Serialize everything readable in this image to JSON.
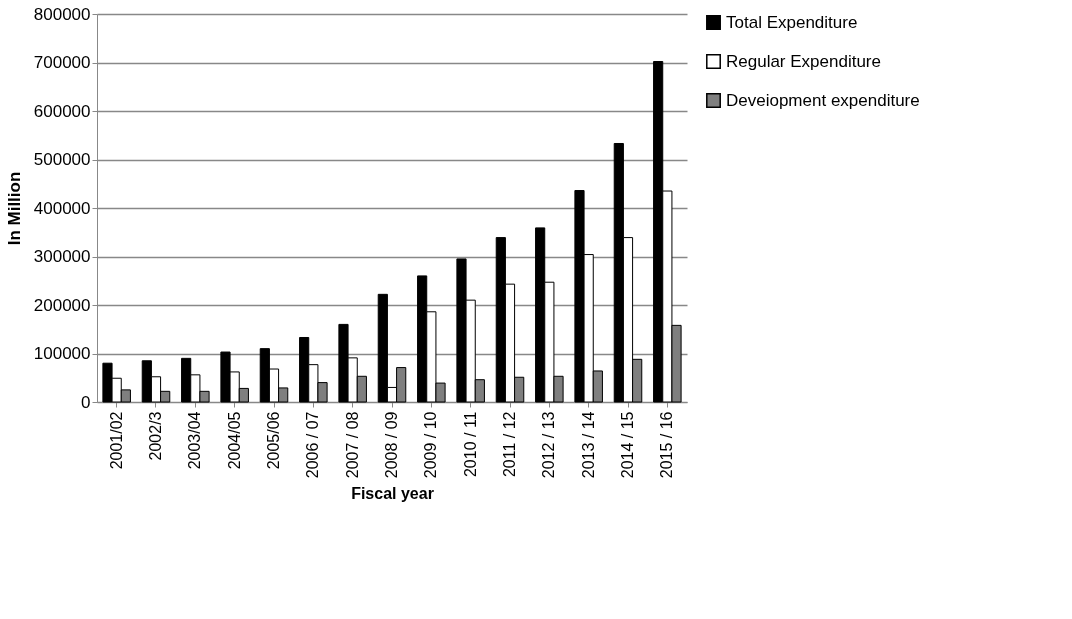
{
  "chart_data": {
    "type": "bar",
    "xlabel": "Fiscal year",
    "ylabel": "In Million",
    "categories": [
      "2001/02",
      "2002/3",
      "2003/04",
      "2004/05",
      "2005/06",
      "2006 / 07",
      "2007 / 08",
      "2008 / 09",
      "2009 / 10",
      "2010 / 11",
      "2011 / 12",
      "2012 / 13",
      "2013 / 14",
      "2014 / 15",
      "2015 / 16"
    ],
    "series": [
      {
        "name": "Total Expenditure",
        "color": "#000000",
        "values": [
          80000,
          85000,
          90000,
          103000,
          110000,
          133000,
          160000,
          222000,
          260000,
          295000,
          339000,
          359000,
          436000,
          533000,
          702000
        ]
      },
      {
        "name": "Regular Expenditure",
        "color": "#ffffff",
        "values": [
          49000,
          52000,
          56000,
          62000,
          68000,
          77000,
          91000,
          30000,
          186000,
          210000,
          243000,
          247000,
          304000,
          339000,
          435000
        ]
      },
      {
        "name": "Deveiopment expenditure",
        "color": "#7f7f7f",
        "values": [
          25000,
          22000,
          22000,
          28000,
          29000,
          40000,
          53000,
          71000,
          39000,
          46000,
          51000,
          53000,
          64000,
          88000,
          158000
        ]
      }
    ],
    "ylim": [
      0,
      800000
    ],
    "yticks": [
      0,
      100000,
      200000,
      300000,
      400000,
      500000,
      600000,
      700000,
      800000
    ],
    "grid": "y",
    "legend": "right"
  }
}
